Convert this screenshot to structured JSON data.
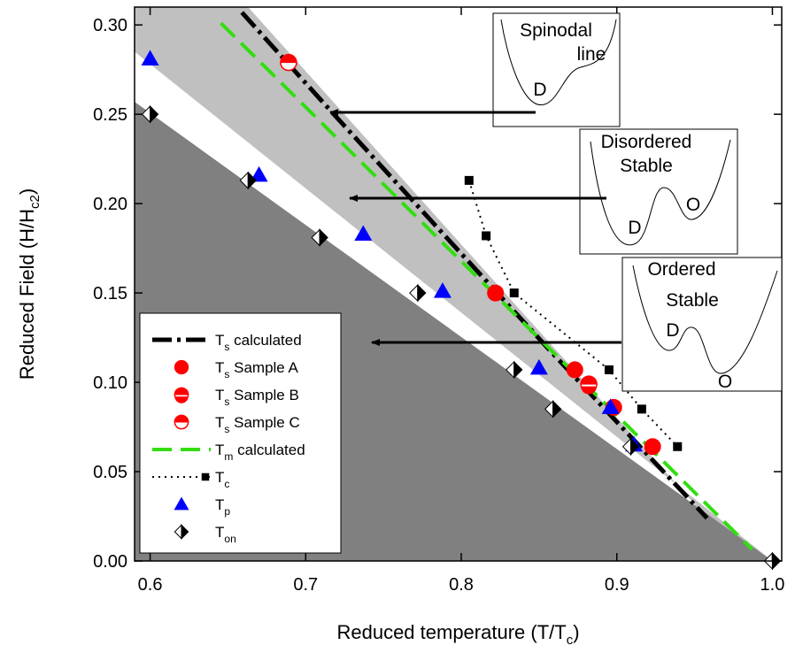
{
  "chart_data": {
    "type": "scatter",
    "xlabel": {
      "text": "Reduced temperature (T/T",
      "sub": "c",
      "tail": ")"
    },
    "ylabel": {
      "text": "Reduced Field (H/H",
      "sub": "c2",
      "tail": ")"
    },
    "xlim": [
      0.59,
      1.006
    ],
    "ylim": [
      0,
      0.31
    ],
    "xticks": [
      0.6,
      0.7,
      0.8,
      0.9,
      {
        "value": 1,
        "label": "1.0"
      }
    ],
    "yticks": [
      {
        "value": 0,
        "label": "0.00"
      },
      0.05,
      {
        "value": 0.1,
        "label": "0.10"
      },
      0.15,
      {
        "value": 0.2,
        "label": "0.20"
      },
      0.25,
      {
        "value": 0.3,
        "label": "0.30"
      }
    ],
    "legend": "lower left",
    "regions": [
      {
        "color": "#c0c0c0",
        "x": [
          0.59,
          0.663,
          0.958,
          1.0,
          0.59
        ],
        "y": [
          0.31,
          0.31,
          0.024,
          0,
          0.285
        ]
      },
      {
        "color": "#808080",
        "x": [
          0.59,
          1.0,
          0.59
        ],
        "y": [
          0.257,
          0,
          0
        ]
      }
    ],
    "series": [
      {
        "name": "T",
        "sub": "s",
        "tail": " calculated",
        "color": "#000000",
        "line": "dashdot",
        "marker": "none",
        "x": [
          0.659,
          0.716,
          0.8,
          0.86,
          0.958
        ],
        "values": [
          0.307,
          0.252,
          0.172,
          0.115,
          0.024
        ]
      },
      {
        "name": "T",
        "sub": "s",
        "tail": " Sample A",
        "color": "#ff0000",
        "line": "none",
        "marker": "circle",
        "x": [
          0.822,
          0.873,
          0.898,
          0.923
        ],
        "values": [
          0.15,
          0.107,
          0.086,
          0.064
        ]
      },
      {
        "name": "T",
        "sub": "s",
        "tail": " Sample B",
        "color": "#ff0000",
        "line": "none",
        "marker": "band",
        "x": [
          0.882
        ],
        "values": [
          0.099
        ]
      },
      {
        "name": "T",
        "sub": "s",
        "tail": " Sample C",
        "color": "#ff0000",
        "line": "none",
        "marker": "halftop",
        "x": [
          0.689
        ],
        "values": [
          0.279
        ]
      },
      {
        "name": "T",
        "sub": "m",
        "tail": " calculated",
        "color": "#33dd11",
        "line": "dashed",
        "marker": "none",
        "x": [
          0.6455,
          0.987
        ],
        "values": [
          0.301,
          0.0065
        ]
      },
      {
        "name": "T",
        "sub": "c",
        "tail": "",
        "color": "#000000",
        "line": "dotted",
        "marker": "square",
        "x": [
          0.805,
          0.816,
          0.834,
          0.895,
          0.916,
          0.939
        ],
        "values": [
          0.213,
          0.182,
          0.15,
          0.107,
          0.085,
          0.064
        ]
      },
      {
        "name": "T",
        "sub": "p",
        "tail": "",
        "color": "#0000ff",
        "line": "none",
        "marker": "triangle",
        "x": [
          0.6,
          0.67,
          0.737,
          0.788,
          0.85,
          0.896,
          0.911
        ],
        "values": [
          0.281,
          0.216,
          0.183,
          0.151,
          0.108,
          0.086,
          0.065
        ]
      },
      {
        "name": "T",
        "sub": "on",
        "tail": "",
        "color": "#000000",
        "line": "none",
        "marker": "diamond",
        "x": [
          0.6,
          0.663,
          0.709,
          0.772,
          0.834,
          0.859,
          0.909,
          1.0
        ],
        "values": [
          0.25,
          0.213,
          0.181,
          0.15,
          0.107,
          0.085,
          0.064,
          0
        ]
      }
    ],
    "insets": [
      {
        "title": [
          "Spinodal",
          "line"
        ],
        "labels": [
          "D"
        ]
      },
      {
        "title": [
          "Disordered",
          "Stable"
        ],
        "labels": [
          "D",
          "O"
        ]
      },
      {
        "title": [
          "Ordered",
          "Stable"
        ],
        "labels": [
          "D",
          "O"
        ]
      }
    ]
  }
}
